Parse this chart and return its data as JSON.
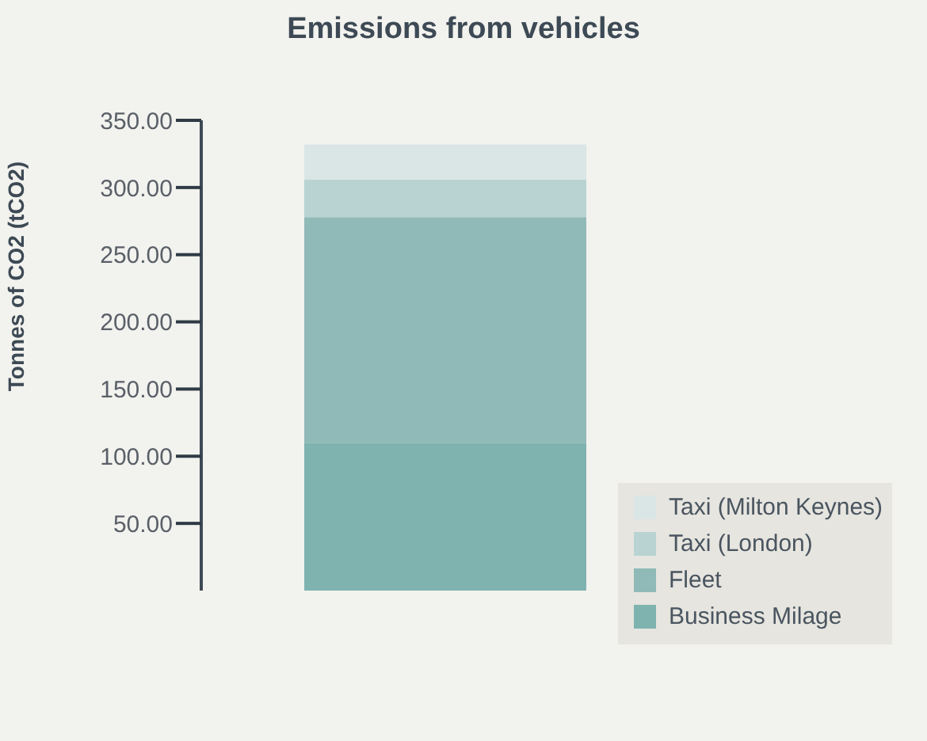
{
  "chart_data": {
    "type": "bar",
    "title": "Emissions from vehicles",
    "ylabel": "Tonnes of CO2 (tCO2)",
    "categories": [
      null
    ],
    "stacked": true,
    "legend": "right",
    "series": [
      {
        "name": "Business Milage",
        "color": "#7fb3b0",
        "values": [
          110
        ]
      },
      {
        "name": "Fleet",
        "color": "#8fbab8",
        "values": [
          168
        ]
      },
      {
        "name": "Taxi (London)",
        "color": "#b8d3d2",
        "values": [
          28
        ]
      },
      {
        "name": "Taxi (Milton Keynes)",
        "color": "#d9e6e5",
        "values": [
          26
        ]
      }
    ],
    "ylim": [
      0,
      350
    ],
    "yticks": [
      {
        "value": 50,
        "label": "50.00"
      },
      {
        "value": 100,
        "label": "100.00"
      },
      {
        "value": 150,
        "label": "150.00"
      },
      {
        "value": 200,
        "label": "200.00"
      },
      {
        "value": 250,
        "label": "250.00"
      },
      {
        "value": 300,
        "label": "300.00"
      },
      {
        "value": 350,
        "label": "350.00"
      }
    ]
  }
}
